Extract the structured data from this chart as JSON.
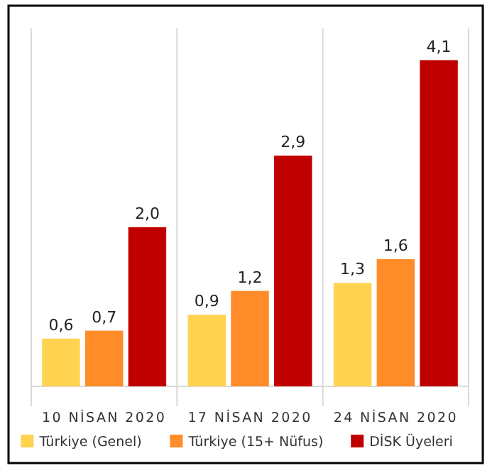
{
  "chart_data": {
    "type": "bar",
    "categories": [
      "10 NİSAN 2020",
      "17 NİSAN 2020",
      "24 NİSAN 2020"
    ],
    "series": [
      {
        "name": "Türkiye (Genel)",
        "color": "#ffd350",
        "values": [
          0.6,
          0.9,
          1.3
        ],
        "value_labels": [
          "0,6",
          "0,9",
          "1,3"
        ]
      },
      {
        "name": "Türkiye (15+ Nüfus)",
        "color": "#ff8c28",
        "values": [
          0.7,
          1.2,
          1.6
        ],
        "value_labels": [
          "0,7",
          "1,2",
          "1,6"
        ]
      },
      {
        "name": "DİSK Üyeleri",
        "color": "#c00000",
        "values": [
          2.0,
          2.9,
          4.1
        ],
        "value_labels": [
          "2,0",
          "2,9",
          "4,1"
        ]
      }
    ],
    "ylim": [
      0,
      4.5
    ],
    "grid": "x",
    "legend": "bottom"
  }
}
